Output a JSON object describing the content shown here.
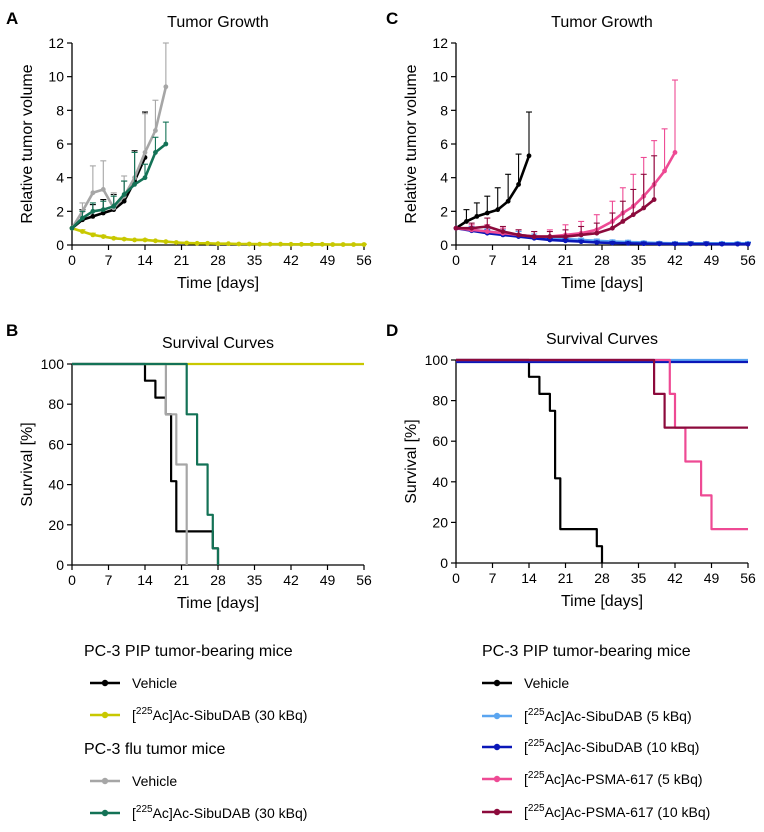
{
  "figure": {
    "panel_letters": [
      "A",
      "B",
      "C",
      "D"
    ]
  },
  "chart_data": [
    {
      "id": "A",
      "type": "line",
      "title": "Tumor Growth",
      "xlabel": "Time [days]",
      "ylabel": "Relative tumor volume",
      "xlim": [
        0,
        56
      ],
      "ylim": [
        0,
        12
      ],
      "xticks": [
        0,
        7,
        14,
        21,
        28,
        35,
        42,
        49,
        56
      ],
      "yticks": [
        0,
        2,
        4,
        6,
        8,
        10,
        12
      ],
      "series": [
        {
          "name": "PIP Vehicle",
          "color": "#000000",
          "x": [
            0,
            2,
            4,
            6,
            8,
            10,
            12,
            14
          ],
          "y": [
            1.0,
            1.5,
            1.7,
            1.9,
            2.1,
            2.6,
            3.8,
            5.2
          ],
          "err": [
            0,
            0.6,
            0.7,
            0.8,
            0.9,
            1.2,
            1.8,
            2.7
          ]
        },
        {
          "name": "PIP [225Ac]Ac-SibuDAB (30 kBq)",
          "color": "#c8c800",
          "x": [
            0,
            2,
            4,
            6,
            8,
            10,
            12,
            14,
            16,
            18,
            20,
            22,
            24,
            26,
            28,
            30,
            32,
            34,
            36,
            38,
            40,
            42,
            44,
            46,
            48,
            50,
            52,
            54,
            56
          ],
          "y": [
            1.0,
            0.8,
            0.6,
            0.5,
            0.4,
            0.35,
            0.3,
            0.3,
            0.25,
            0.2,
            0.15,
            0.12,
            0.1,
            0.1,
            0.08,
            0.08,
            0.06,
            0.06,
            0.05,
            0.05,
            0.05,
            0.04,
            0.04,
            0.04,
            0.04,
            0.03,
            0.03,
            0.03,
            0.03
          ],
          "err": [
            0,
            0.1,
            0.1,
            0.08,
            0.06,
            0.05,
            0.05,
            0.05,
            0.04,
            0.03,
            0.03,
            0.02,
            0.02,
            0.02,
            0.02,
            0.02,
            0.02,
            0.02,
            0.02,
            0.02,
            0.02,
            0.02,
            0.02,
            0.02,
            0.02,
            0.02,
            0.02,
            0.02,
            0.02
          ]
        },
        {
          "name": "flu Vehicle",
          "color": "#a6a6a6",
          "x": [
            0,
            2,
            4,
            6,
            8,
            10,
            12,
            14,
            16,
            18
          ],
          "y": [
            1.0,
            2.0,
            3.1,
            3.3,
            2.2,
            2.9,
            4.0,
            5.5,
            6.8,
            9.4
          ],
          "err": [
            0,
            0.5,
            1.6,
            1.7,
            0.9,
            1.2,
            1.5,
            2.3,
            1.8,
            2.6
          ]
        },
        {
          "name": "flu [225Ac]Ac-SibuDAB (30 kBq)",
          "color": "#137256",
          "x": [
            0,
            2,
            4,
            6,
            8,
            10,
            12,
            14,
            16,
            18
          ],
          "y": [
            1.0,
            1.6,
            2.0,
            2.1,
            2.3,
            3.0,
            3.6,
            4.0,
            5.5,
            6.0
          ],
          "err": [
            0,
            0.4,
            0.5,
            0.5,
            0.6,
            0.8,
            1.9,
            0.8,
            0.9,
            1.3
          ]
        }
      ]
    },
    {
      "id": "B",
      "type": "line",
      "title": "Survival Curves",
      "xlabel": "Time [days]",
      "ylabel": "Survival [%]",
      "xlim": [
        0,
        56
      ],
      "ylim": [
        0,
        100
      ],
      "xticks": [
        0,
        7,
        14,
        21,
        28,
        35,
        42,
        49,
        56
      ],
      "yticks": [
        0,
        20,
        40,
        60,
        80,
        100
      ],
      "series": [
        {
          "name": "PIP Vehicle",
          "color": "#000000",
          "x": [
            0,
            14,
            14,
            16,
            16,
            18,
            18,
            19,
            19,
            20,
            20,
            27,
            27,
            28,
            28
          ],
          "y": [
            100,
            100,
            91.7,
            91.7,
            83.3,
            83.3,
            75,
            75,
            41.7,
            41.7,
            16.7,
            16.7,
            8.3,
            8.3,
            0
          ]
        },
        {
          "name": "PIP [225Ac]Ac-SibuDAB (30 kBq)",
          "color": "#c8c800",
          "x": [
            14,
            56
          ],
          "y": [
            100,
            100
          ]
        },
        {
          "name": "flu Vehicle",
          "color": "#a6a6a6",
          "x": [
            0,
            18,
            18,
            20,
            20,
            21,
            21,
            22,
            22
          ],
          "y": [
            100,
            100,
            75,
            75,
            50,
            50,
            50,
            50,
            0
          ]
        },
        {
          "name": "flu [225Ac]Ac-SibuDAB (30 kBq)",
          "color": "#137256",
          "x": [
            0,
            22,
            22,
            24,
            24,
            26,
            26,
            27,
            27,
            28,
            28
          ],
          "y": [
            100,
            100,
            75,
            75,
            50,
            50,
            25,
            25,
            8.3,
            8.3,
            0
          ]
        }
      ]
    },
    {
      "id": "C",
      "type": "line",
      "title": "Tumor Growth",
      "xlabel": "Time [days]",
      "ylabel": "Relative tumor volume",
      "xlim": [
        0,
        56
      ],
      "ylim": [
        0,
        12
      ],
      "xticks": [
        0,
        7,
        14,
        21,
        28,
        35,
        42,
        49,
        56
      ],
      "yticks": [
        0,
        2,
        4,
        6,
        8,
        10,
        12
      ],
      "series": [
        {
          "name": "Vehicle",
          "color": "#000000",
          "x": [
            0,
            2,
            4,
            6,
            8,
            10,
            12,
            14
          ],
          "y": [
            1.0,
            1.4,
            1.7,
            1.9,
            2.1,
            2.6,
            3.6,
            5.3
          ],
          "err": [
            0,
            0.7,
            0.8,
            1.0,
            1.3,
            1.6,
            1.8,
            2.6
          ]
        },
        {
          "name": "[225Ac]Ac-SibuDAB (5 kBq)",
          "color": "#5aa5f0",
          "x": [
            0,
            3,
            6,
            9,
            12,
            15,
            18,
            21,
            24,
            27,
            30,
            33,
            36,
            39,
            42,
            45,
            48,
            51,
            54,
            56
          ],
          "y": [
            1.0,
            0.9,
            0.8,
            0.7,
            0.6,
            0.5,
            0.4,
            0.35,
            0.3,
            0.25,
            0.2,
            0.18,
            0.15,
            0.12,
            0.1,
            0.1,
            0.1,
            0.1,
            0.1,
            0.1
          ],
          "err": [
            0,
            0.2,
            0.2,
            0.2,
            0.2,
            0.15,
            0.15,
            0.1,
            0.1,
            0.1,
            0.1,
            0.1,
            0.08,
            0.08,
            0.08,
            0.08,
            0.08,
            0.08,
            0.08,
            0.08
          ]
        },
        {
          "name": "[225Ac]Ac-SibuDAB (10 kBq)",
          "color": "#0a17b8",
          "x": [
            0,
            3,
            6,
            9,
            12,
            15,
            18,
            21,
            24,
            27,
            30,
            33,
            36,
            39,
            42,
            45,
            48,
            51,
            54,
            56
          ],
          "y": [
            1.0,
            0.85,
            0.7,
            0.6,
            0.5,
            0.4,
            0.3,
            0.25,
            0.2,
            0.15,
            0.12,
            0.1,
            0.08,
            0.07,
            0.06,
            0.06,
            0.06,
            0.05,
            0.05,
            0.05
          ],
          "err": [
            0,
            0.2,
            0.2,
            0.15,
            0.15,
            0.12,
            0.1,
            0.1,
            0.08,
            0.08,
            0.08,
            0.08,
            0.1,
            0.1,
            0.1,
            0.12,
            0.12,
            0.1,
            0.08,
            0.08
          ]
        },
        {
          "name": "[225Ac]Ac-PSMA-617 (5 kBq)",
          "color": "#ee4a94",
          "x": [
            0,
            3,
            6,
            9,
            12,
            15,
            18,
            21,
            24,
            27,
            30,
            32,
            34,
            36,
            38,
            40,
            42
          ],
          "y": [
            1.0,
            0.9,
            0.8,
            0.7,
            0.6,
            0.5,
            0.5,
            0.6,
            0.7,
            0.9,
            1.4,
            1.9,
            2.3,
            2.9,
            3.6,
            4.4,
            5.5
          ],
          "err": [
            0,
            0.3,
            0.4,
            0.3,
            0.3,
            0.3,
            0.4,
            0.6,
            0.7,
            0.9,
            1.2,
            1.5,
            1.9,
            2.3,
            2.6,
            2.5,
            4.3
          ]
        },
        {
          "name": "[225Ac]Ac-PSMA-617 (10 kBq)",
          "color": "#8c0a3c",
          "x": [
            0,
            3,
            6,
            9,
            12,
            15,
            18,
            21,
            24,
            27,
            30,
            32,
            34,
            36,
            38
          ],
          "y": [
            1.0,
            1.0,
            1.1,
            0.8,
            0.6,
            0.5,
            0.5,
            0.5,
            0.6,
            0.7,
            1.0,
            1.4,
            1.8,
            2.2,
            2.7
          ],
          "err": [
            0,
            0.3,
            0.5,
            0.3,
            0.3,
            0.3,
            0.3,
            0.4,
            0.5,
            0.6,
            0.9,
            1.2,
            1.5,
            2.0,
            2.6
          ]
        }
      ]
    },
    {
      "id": "D",
      "type": "line",
      "title": "Survival Curves",
      "xlabel": "Time [days]",
      "ylabel": "Survival [%]",
      "xlim": [
        0,
        56
      ],
      "ylim": [
        0,
        100
      ],
      "xticks": [
        0,
        7,
        14,
        21,
        28,
        35,
        42,
        49,
        56
      ],
      "yticks": [
        0,
        20,
        40,
        60,
        80,
        100
      ],
      "series": [
        {
          "name": "Vehicle",
          "color": "#000000",
          "x": [
            0,
            14,
            14,
            16,
            16,
            18,
            18,
            19,
            19,
            20,
            20,
            27,
            27,
            28,
            28
          ],
          "y": [
            100,
            100,
            91.7,
            91.7,
            83.3,
            83.3,
            75,
            75,
            41.7,
            41.7,
            16.7,
            16.7,
            8.3,
            8.3,
            0
          ]
        },
        {
          "name": "[225Ac]Ac-SibuDAB (5 kBq)",
          "color": "#5aa5f0",
          "x": [
            0,
            56
          ],
          "y": [
            100,
            100
          ]
        },
        {
          "name": "[225Ac]Ac-SibuDAB (10 kBq)",
          "color": "#0a17b8",
          "x": [
            0,
            56
          ],
          "y": [
            99,
            99
          ]
        },
        {
          "name": "[225Ac]Ac-PSMA-617 (5 kBq)",
          "color": "#ee4a94",
          "x": [
            0,
            41,
            41,
            42,
            42,
            44,
            44,
            47,
            47,
            49,
            49,
            50,
            50,
            56
          ],
          "y": [
            100,
            100,
            83.3,
            83.3,
            66.7,
            66.7,
            50,
            50,
            33.3,
            33.3,
            16.7,
            16.7,
            16.7,
            16.7
          ]
        },
        {
          "name": "[225Ac]Ac-PSMA-617 (10 kBq)",
          "color": "#8c0a3c",
          "x": [
            0,
            38,
            38,
            40,
            40,
            56
          ],
          "y": [
            100,
            100,
            83.3,
            83.3,
            66.7,
            66.7
          ]
        }
      ]
    }
  ],
  "legends": {
    "left": {
      "heading1": "PC-3 PIP tumor-bearing mice",
      "heading2": "PC-3 flu tumor mice",
      "items": [
        {
          "pre": "Vehicle",
          "sup": "",
          "post": "",
          "color": "#000000"
        },
        {
          "pre": "[",
          "sup": "225",
          "post": "Ac]Ac-SibuDAB (30 kBq)",
          "color": "#c8c800"
        },
        {
          "pre": "Vehicle",
          "sup": "",
          "post": "",
          "color": "#a6a6a6"
        },
        {
          "pre": "[",
          "sup": "225",
          "post": "Ac]Ac-SibuDAB (30 kBq)",
          "color": "#137256"
        }
      ]
    },
    "right": {
      "heading": "PC-3 PIP tumor-bearing mice",
      "items": [
        {
          "pre": "Vehicle",
          "sup": "",
          "post": "",
          "color": "#000000"
        },
        {
          "pre": "[",
          "sup": "225",
          "post": "Ac]Ac-SibuDAB (5 kBq)",
          "color": "#5aa5f0"
        },
        {
          "pre": "[",
          "sup": "225",
          "post": "Ac]Ac-SibuDAB  (10 kBq)",
          "color": "#0a17b8"
        },
        {
          "pre": "[",
          "sup": "225",
          "post": "Ac]Ac-PSMA-617 (5 kBq)",
          "color": "#ee4a94"
        },
        {
          "pre": "[",
          "sup": "225",
          "post": "Ac]Ac-PSMA-617 (10 kBq)",
          "color": "#8c0a3c"
        }
      ]
    }
  }
}
